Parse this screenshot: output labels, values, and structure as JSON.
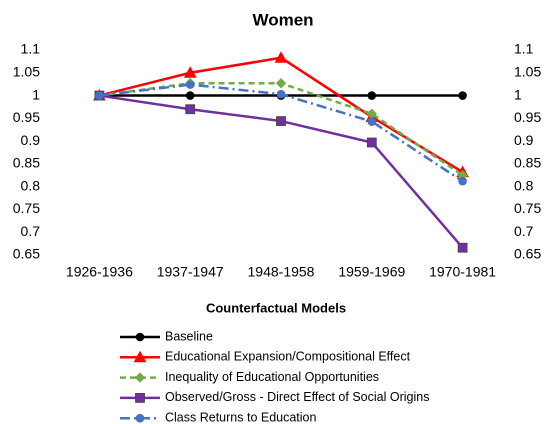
{
  "chart_data": {
    "type": "line",
    "title": "Women",
    "x_label": "Counterfactual Models",
    "categories": [
      "1926-1936",
      "1937-1947",
      "1948-1958",
      "1959-1969",
      "1970-1981"
    ],
    "ylim": [
      0.65,
      1.1
    ],
    "yticks": [
      0.65,
      0.7,
      0.75,
      0.8,
      0.85,
      0.9,
      0.95,
      1,
      1.05,
      1.1
    ],
    "y2lim": [
      0.65,
      1.1
    ],
    "y2ticks": [
      0.65,
      0.7,
      0.75,
      0.8,
      0.85,
      0.9,
      0.95,
      1,
      1.05,
      1.1
    ],
    "grid": false,
    "series": [
      {
        "name": "Baseline",
        "color": "#000000",
        "marker": "circle",
        "line_style": "solid",
        "values": [
          1,
          1,
          1,
          1,
          1
        ]
      },
      {
        "name": "Educational Expansion/Compositional Effect",
        "color": "#ff0000",
        "marker": "triangle",
        "line_style": "solid",
        "values": [
          1,
          1.05,
          1.083,
          0.953,
          0.832
        ]
      },
      {
        "name": "Inequality of Educational Opportunities",
        "color": "#70ad47",
        "marker": "diamond",
        "line_style": "dashed",
        "values": [
          1,
          1.027,
          1.027,
          0.96,
          0.825
        ]
      },
      {
        "name": "Observed/Gross - Direct Effect of Social Origins",
        "color": "#7030a0",
        "marker": "square",
        "line_style": "solid",
        "values": [
          1,
          0.97,
          0.944,
          0.897,
          0.666
        ]
      },
      {
        "name": "Class Returns to Education",
        "color": "#4472c4",
        "marker": "circle",
        "line_style": "dashdot",
        "values": [
          1,
          1.024,
          1.003,
          0.943,
          0.812
        ]
      }
    ]
  }
}
